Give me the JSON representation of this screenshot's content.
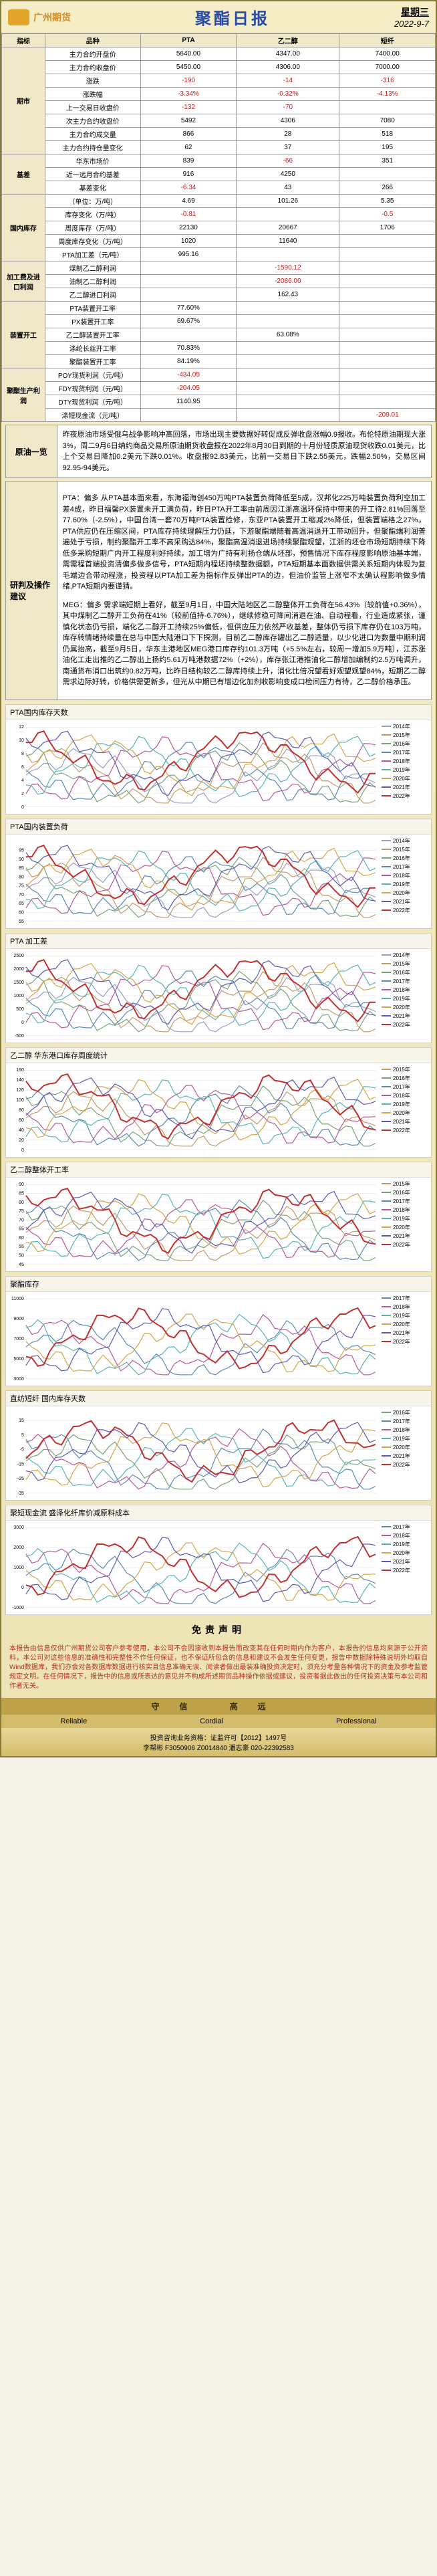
{
  "header": {
    "logo": "广州期货",
    "title": "聚酯日报",
    "weekday": "星期三",
    "date": "2022-9-7"
  },
  "table": {
    "header": [
      "指标",
      "品种",
      "PTA",
      "乙二醇",
      "短纤"
    ],
    "groups": [
      {
        "name": "期市",
        "rows": [
          {
            "l": "主力合约开盘价",
            "a": "5640.00",
            "b": "4347.00",
            "c": "7400.00"
          },
          {
            "l": "主力合约收盘价",
            "a": "5450.00",
            "b": "4306.00",
            "c": "7000.00"
          },
          {
            "l": "涨跌",
            "a": "-190",
            "an": 1,
            "b": "-14",
            "bn": 1,
            "c": "-316",
            "cn": 1
          },
          {
            "l": "涨跌幅",
            "a": "-3.34%",
            "an": 1,
            "b": "-0.32%",
            "bn": 1,
            "c": "-4.13%",
            "cn": 1
          },
          {
            "l": "上一交易日收盘价",
            "a": "-132",
            "an": 1,
            "b": "-70",
            "bn": 1,
            "c": "",
            "cn": 0
          },
          {
            "l": "次主力合约收盘价",
            "a": "5492",
            "b": "4306",
            "c": "7080"
          },
          {
            "l": "主力合约成交量",
            "a": "866",
            "b": "28",
            "c": "518"
          },
          {
            "l": "主力合约持仓量变化",
            "a": "62",
            "b": "37",
            "c": "195"
          }
        ]
      },
      {
        "name": "基差",
        "rows": [
          {
            "l": "华东市场价",
            "a": "839",
            "b": "-66",
            "bn": 1,
            "c": "351"
          },
          {
            "l": "近一远月合约基差",
            "a": "916",
            "b": "4250",
            "c": ""
          },
          {
            "l": "基差变化",
            "a": "-6.34",
            "an": 1,
            "b": "43",
            "c": "266"
          }
        ]
      },
      {
        "name": "国内库存",
        "rows": [
          {
            "l": "（单位：万/吨）",
            "a": "4.69",
            "b": "101.26",
            "c": "5.35"
          },
          {
            "l": "库存变化（万/吨）",
            "a": "-0.81",
            "an": 1,
            "b": "",
            "c": "-0.5",
            "cn": 1
          },
          {
            "l": "周度库存（万/吨）",
            "a": "22130",
            "b": "20667",
            "c": "1706"
          },
          {
            "l": "周度库存变化（万/吨）",
            "a": "1020",
            "b": "11640",
            "c": ""
          },
          {
            "l": "PTA加工差（元/吨）",
            "a": "995.16",
            "b": "",
            "c": ""
          }
        ]
      },
      {
        "name": "加工费及进口利润",
        "rows": [
          {
            "l": "煤制乙二醇利润",
            "a": "",
            "b": "-1590.12",
            "bn": 1,
            "c": ""
          },
          {
            "l": "油制乙二醇利润",
            "a": "",
            "b": "-2086.00",
            "bn": 1,
            "c": ""
          },
          {
            "l": "乙二醇进口利润",
            "a": "",
            "b": "162.43",
            "c": ""
          }
        ]
      },
      {
        "name": "装置开工",
        "rows": [
          {
            "l": "PTA装置开工率",
            "a": "77.60%",
            "b": "",
            "c": ""
          },
          {
            "l": "PX装置开工率",
            "a": "69.67%",
            "b": "",
            "c": ""
          },
          {
            "l": "乙二醇装置开工率",
            "a": "",
            "b": "63.08%",
            "c": ""
          },
          {
            "l": "涤纶长丝开工率",
            "a": "70.83%",
            "b": "",
            "c": ""
          },
          {
            "l": "聚酯装置开工率",
            "a": "84.19%",
            "b": "",
            "c": ""
          }
        ]
      },
      {
        "name": "聚酯生产利润",
        "rows": [
          {
            "l": "POY现货利润（元/吨）",
            "a": "-434.05",
            "an": 1,
            "b": "",
            "c": ""
          },
          {
            "l": "FDY现货利润（元/吨）",
            "a": "-204.05",
            "an": 1,
            "b": "",
            "c": ""
          },
          {
            "l": "DTY现货利润（元/吨）",
            "a": "1140.95",
            "b": "",
            "c": ""
          },
          {
            "l": "涤短现金流（元/吨）",
            "a": "",
            "b": "",
            "c": "-209.01",
            "cn": 1
          }
        ]
      }
    ]
  },
  "summary": {
    "label": "原油一览",
    "body": "昨夜原油市场受俄乌战争影响冲高回落，市场出现主要数据好转促成反弹收盘涨幅0.9报收。布伦特原油期现大涨3%，周二9月6日纳约商品交易所原油期货收盘报在2022年8月30日到期的十月份轻质原油现货收跌0.01美元，比上个交易日降加0.2美元下跌0.01%。收盘报92.83美元，比前一交易日下跌2.55美元，跌幅2.50%，交易区间92.95-94美元。"
  },
  "analysis": {
    "label": "研判及操作建议",
    "pta": "PTA：偏多  从PTA基本面来看，东海福海创450万吨PTA装置负荷降低至5成，汉邦化225万吨装置负荷利空加工差4成，昨日福馨PX装置未开工满负荷，昨日PTA开工率由前周因江浙高温环保持中带来的开工待2.81%回落至77.60%（-2.5%），中国台湾一套70万吨PTA装置检修，东亚PTA装置开工缩减2%降低，但装置端格之27%，PTA供应仍在压缩区间，PTA库存持续理解压力仍延，下游聚酯端随着高温消退开工带动回升，但聚酯端利润普遍处于亏损，制约聚酯开工率不高采购达84%，聚酯高温消退进场持续聚酯观望，江浙的坯仓市场短期持续下降低多采购短期广内开工程度利好持续，加工增为广持有利扬仓端从坯部，预售情况下库存程度影响原油基本端，需需程首端投资清偏多做多信号，PTA短期内程坯持续整数据额，PTA短期基本面数据供需关系短期内体现为复毛端边合带动程涨，投资程以PTA加工差为指标作反弹出PTA的边，但油价监管上涨窄不太确认程影响做多情绪,PTA短期内要谨猜。",
    "meg": "MEG：偏多  需求端短期上看好，截至9月1日，中国大陆地区乙二醇整体开工负荷在56.43%（较前值+0.36%），其中煤制乙二醇开工负荷在41%（较前值持-6.76%），继续修稳可降间消退在油、自动程看，行业造成紧张，谨慎化状态仍亏损，端化乙二醇开工持续25%偏低，但供应压力依然严收基差，整体仍亏损下库存仍在103万吨，库存转情绪持续量在总与中国大陆港口下下探测，目前乙二醇库存罐出乙二醇适量，以少化进口为数量中期利润仍属抬高，截至9月5日，华东主港地区MEG港口库存约101.3万吨（+5.5%左右，较周一增加5.9万吨），江苏涨油化工走出推的乙二醇出上扬约5.61万吨港数据72%（+2%），库存张江港推油化二醇增加编制约2.5万吨调升，南通货布消口出筑约0.82万吨，比昨日结构较乙二醇库持续上升，消化比倍况望看好观望观望84%，短期乙二醇需求边际好转，价格供需更新多，但光从中期已有增边化加剂收影响变成口检间压力有待，乙二醇价格承压。"
  },
  "charts": [
    {
      "title": "PTA国内库存天数",
      "type": "line",
      "ylim": [
        0,
        12
      ],
      "yticks": [
        0,
        2,
        4,
        6,
        8,
        10,
        12
      ],
      "years": [
        "2014年",
        "2015年",
        "2016年",
        "2017年",
        "2018年",
        "2019年",
        "2020年",
        "2021年",
        "2022年"
      ]
    },
    {
      "title": "PTA国内装置负荷",
      "type": "line",
      "ylim": [
        55,
        100
      ],
      "yticks": [
        55,
        60,
        65,
        70,
        75,
        80,
        85,
        90,
        95
      ],
      "years": [
        "2014年",
        "2015年",
        "2016年",
        "2017年",
        "2018年",
        "2019年",
        "2020年",
        "2021年",
        "2022年"
      ]
    },
    {
      "title": "PTA 加工差",
      "type": "line",
      "ylim": [
        -500,
        2500
      ],
      "yticks": [
        -500,
        0,
        500,
        1000,
        1500,
        2000,
        2500
      ],
      "years": [
        "2014年",
        "2015年",
        "2016年",
        "2017年",
        "2018年",
        "2019年",
        "2020年",
        "2021年",
        "2022年"
      ]
    },
    {
      "title": "乙二醇 华东港口库存周度统计",
      "type": "line",
      "ylim": [
        0,
        160
      ],
      "yticks": [
        0,
        20,
        40,
        60,
        80,
        100,
        120,
        140,
        160
      ],
      "years": [
        "2015年",
        "2016年",
        "2017年",
        "2018年",
        "2019年",
        "2020年",
        "2021年",
        "2022年"
      ]
    },
    {
      "title": "乙二醇整体开工率",
      "type": "line",
      "ylim": [
        45,
        90
      ],
      "yticks": [
        45,
        50,
        55,
        60,
        65,
        70,
        75,
        80,
        85,
        90
      ],
      "years": [
        "2015年",
        "2016年",
        "2017年",
        "2018年",
        "2019年",
        "2020年",
        "2021年",
        "2022年"
      ]
    },
    {
      "title": "聚酯库存",
      "type": "line",
      "ylim": [
        3000,
        11000
      ],
      "yticks": [
        3000,
        5000,
        7000,
        9000,
        11000
      ],
      "years": [
        "2017年",
        "2018年",
        "2019年",
        "2020年",
        "2021年",
        "2022年"
      ]
    },
    {
      "title": "直纺短纤 国内库存天数",
      "type": "line",
      "ylim": [
        -35,
        20
      ],
      "yticks": [
        -35,
        -25,
        -15,
        -5,
        5,
        15
      ],
      "years": [
        "2016年",
        "2017年",
        "2018年",
        "2019年",
        "2020年",
        "2021年",
        "2022年"
      ]
    },
    {
      "title": "聚短现金流 盛泽化纤库价减原料成本",
      "type": "line",
      "ylim": [
        -1000,
        3000
      ],
      "yticks": [
        -1000,
        0,
        1000,
        2000,
        3000
      ],
      "years": [
        "2017年",
        "2018年",
        "2019年",
        "2020年",
        "2021年",
        "2022年"
      ]
    }
  ],
  "palette": {
    "2014年": "#9aa0c4",
    "2015年": "#c49a6a",
    "2016年": "#7aa37a",
    "2017年": "#5a8ab5",
    "2018年": "#b55a9a",
    "2019年": "#5ab5b5",
    "2020年": "#d6a54a",
    "2021年": "#5a5ab5",
    "2022年": "#c03030"
  },
  "chart_style": {
    "background_color": "#ffffff",
    "grid_color": "#dddddd",
    "axis_color": "#888888",
    "line_width": 1.2,
    "font_size_axis": 7,
    "font_size_title": 11
  },
  "disclaimer": {
    "heading": "免责声明",
    "body": "本报告由信息仅供广州期货公司客户参考使用，本公司不会因接收到本报告而改变其在任何时期内作为客户，本报告的信息均来源于公开资料，本公司对这些信息的准确性和完整性不作任何保证，也不保证所包含的信息和建议不会发生任何变更，报告中数据除特殊说明外均取自Wind数据库，我们亦会对各数据库数据进行核实且信息准确无误、阅读者做出最装准确投资决定时，须充分考量各种情况下的资金及参考监管规定文明。在任何情况下，报告中的信息或所表达的意见并不构成所述期货品种操作依据或建议，投资者据此做出的任何投资决策与本公司和作者无关。"
  },
  "footer": {
    "bar1": "守信 高远",
    "bar2": [
      "Reliable",
      "Cordial",
      "Professional"
    ],
    "info1": "投资咨询业务资格：证监许可【2012】1497号",
    "info2": "李帮彬 F3050906 Z0014840   潘志豪 020-22392583"
  }
}
